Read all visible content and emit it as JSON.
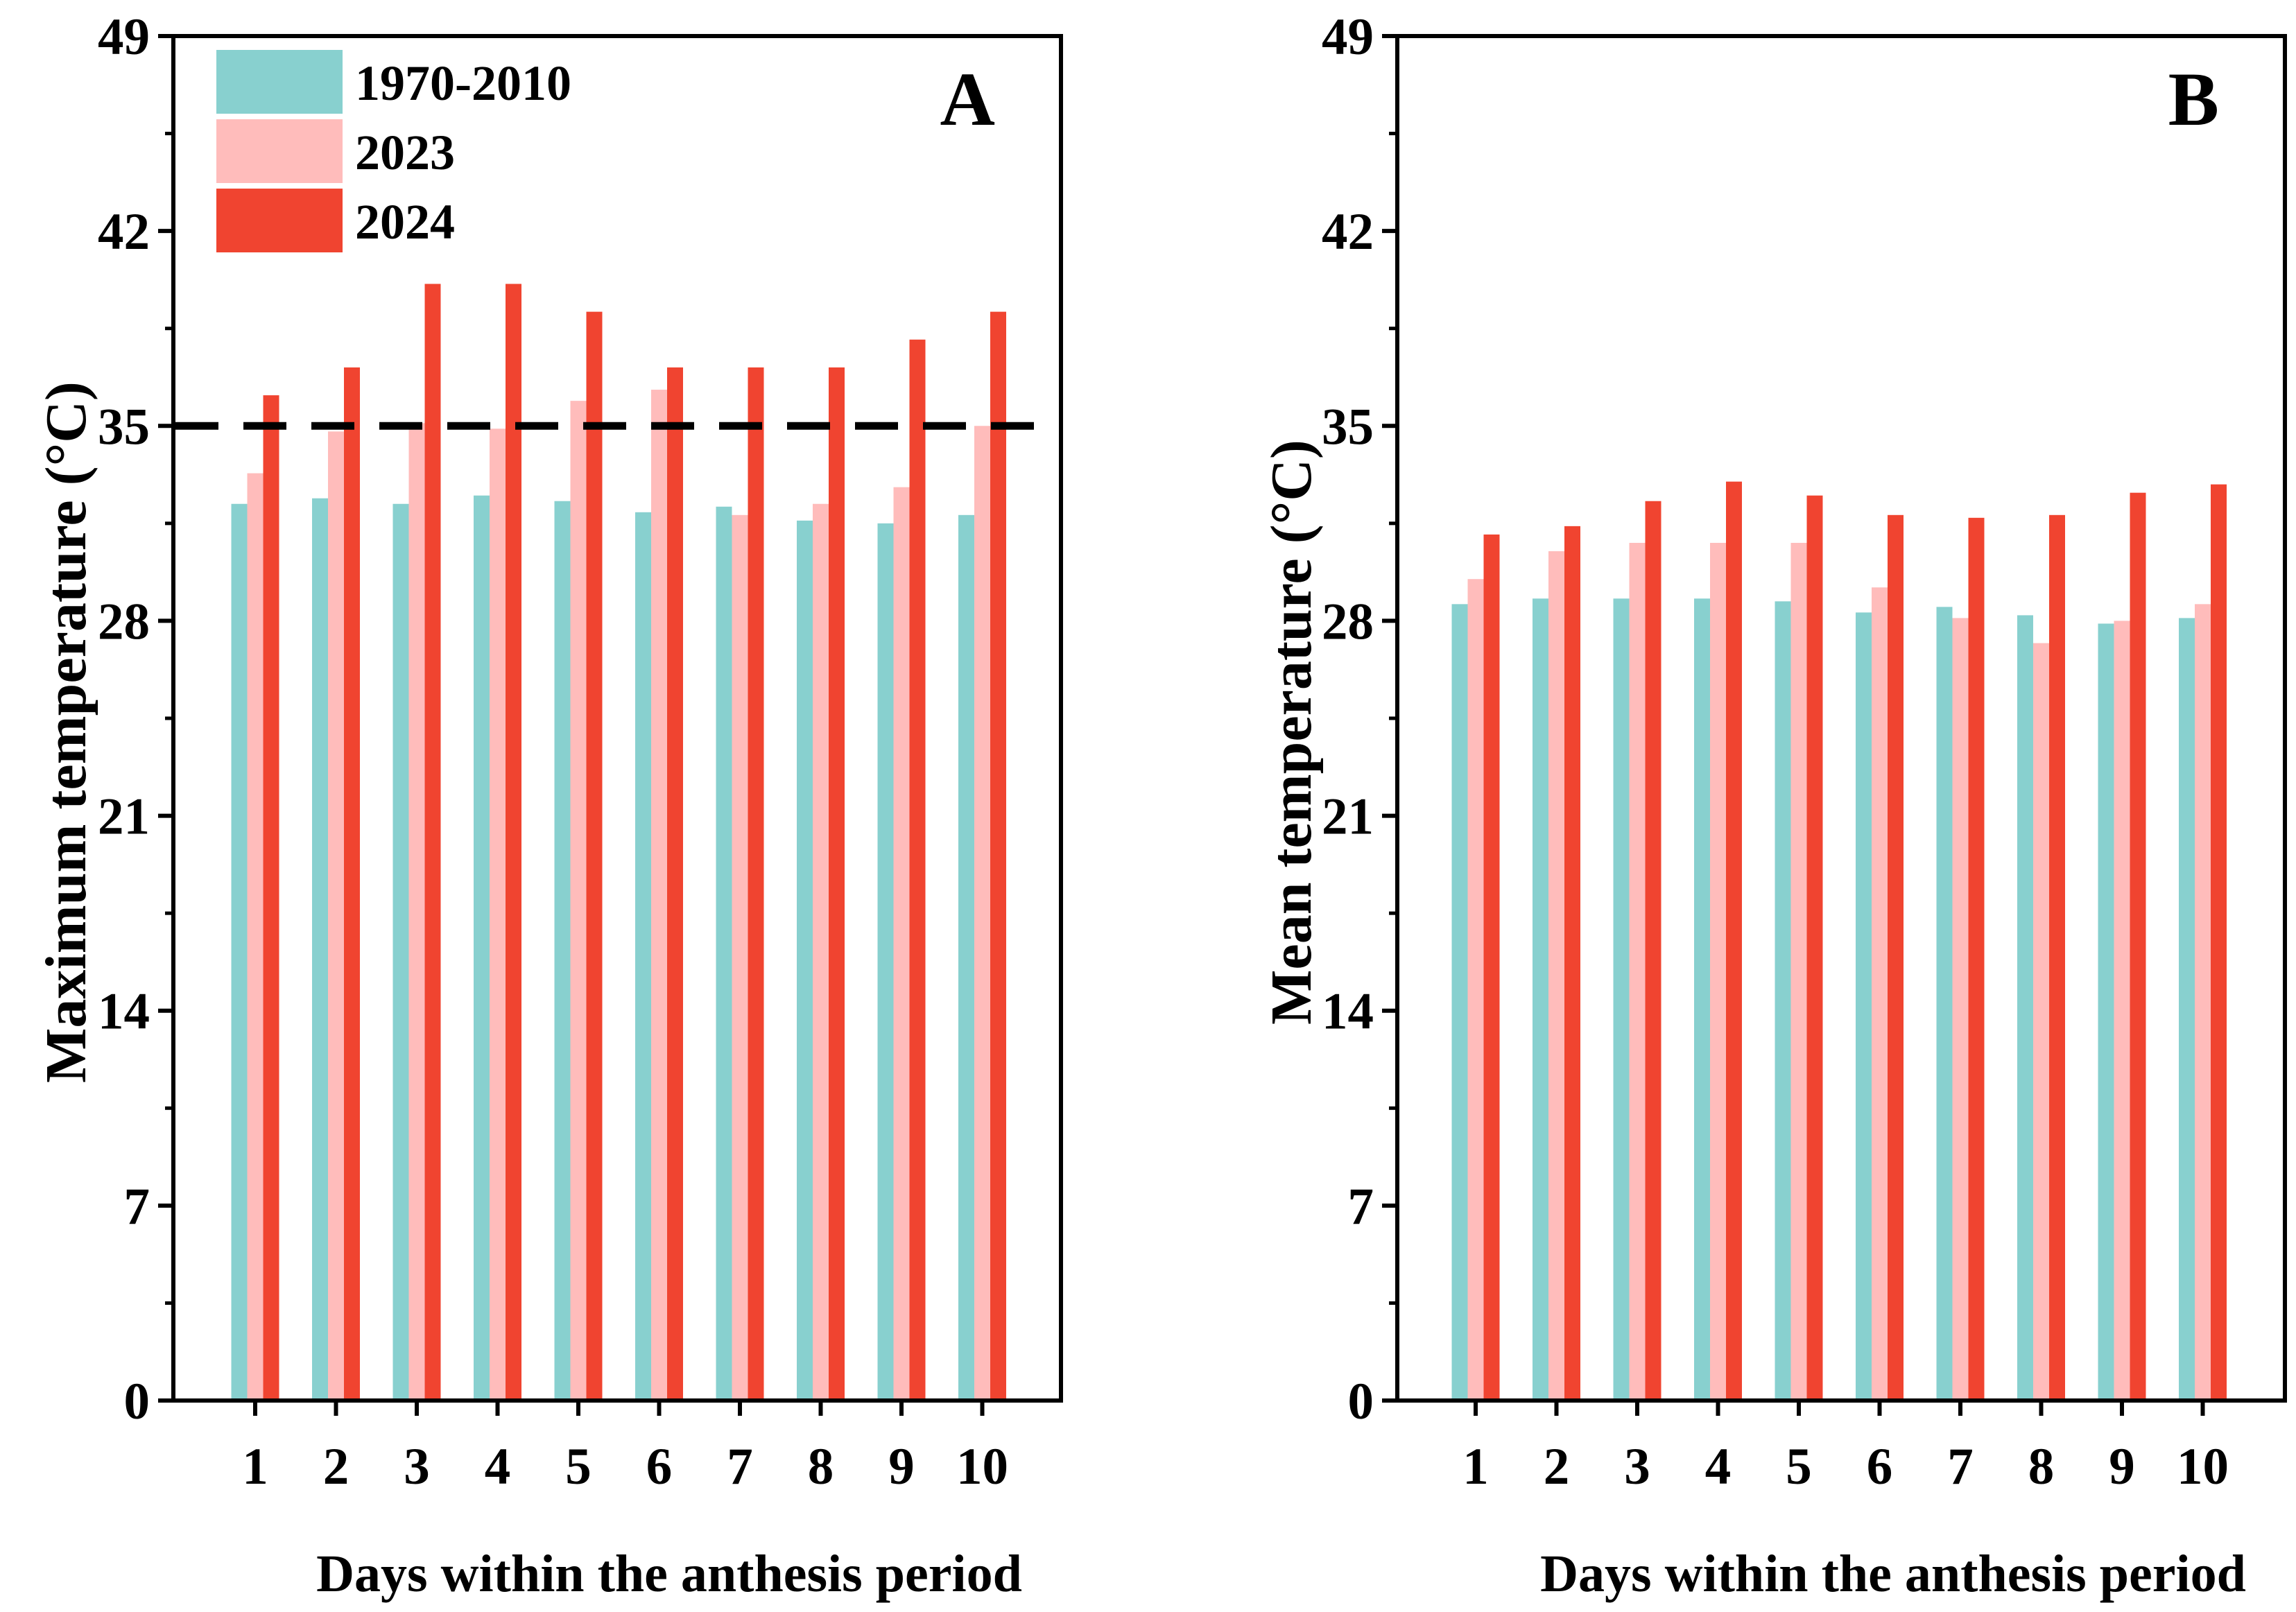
{
  "colors": {
    "series_1970_2010": "#88d0cf",
    "series_2023": "#ffbcbb",
    "series_2024": "#f04430",
    "axis": "#000000",
    "threshold_line": "#000000"
  },
  "legend": {
    "placement": "top-left",
    "entries": [
      "1970-2010",
      "2023",
      "2024"
    ]
  },
  "chart_data": [
    {
      "type": "bar",
      "panel_letter": "A",
      "ylabel": "Maximum temperature (°C)",
      "xlabel": "Days within the anthesis period",
      "categories": [
        "1",
        "2",
        "3",
        "4",
        "5",
        "6",
        "7",
        "8",
        "9",
        "10"
      ],
      "ylim": [
        0,
        49
      ],
      "yticks": [
        0,
        7,
        14,
        21,
        28,
        35,
        42,
        49
      ],
      "threshold": 35,
      "series": [
        {
          "name": "1970-2010",
          "values": [
            32.2,
            32.4,
            32.2,
            32.5,
            32.3,
            31.9,
            32.1,
            31.6,
            31.5,
            31.8
          ]
        },
        {
          "name": "2023",
          "values": [
            33.3,
            34.8,
            35.1,
            34.9,
            35.9,
            36.3,
            31.8,
            32.2,
            32.8,
            35.0
          ]
        },
        {
          "name": "2024",
          "values": [
            36.1,
            37.1,
            40.1,
            40.1,
            39.1,
            37.1,
            37.1,
            37.1,
            38.1,
            39.1
          ]
        }
      ]
    },
    {
      "type": "bar",
      "panel_letter": "B",
      "ylabel": "Mean temperature (°C)",
      "xlabel": "Days within the anthesis period",
      "categories": [
        "1",
        "2",
        "3",
        "4",
        "5",
        "6",
        "7",
        "8",
        "9",
        "10"
      ],
      "ylim": [
        0,
        49
      ],
      "yticks": [
        0,
        7,
        14,
        21,
        28,
        35,
        42,
        49
      ],
      "series": [
        {
          "name": "1970-2010",
          "values": [
            28.6,
            28.8,
            28.8,
            28.8,
            28.7,
            28.3,
            28.5,
            28.2,
            27.9,
            28.1
          ]
        },
        {
          "name": "2023",
          "values": [
            29.5,
            30.5,
            30.8,
            30.8,
            30.8,
            29.2,
            28.1,
            27.2,
            28.0,
            28.6
          ]
        },
        {
          "name": "2024",
          "values": [
            31.1,
            31.4,
            32.3,
            33.0,
            32.5,
            31.8,
            31.7,
            31.8,
            32.6,
            32.9
          ]
        }
      ]
    }
  ]
}
